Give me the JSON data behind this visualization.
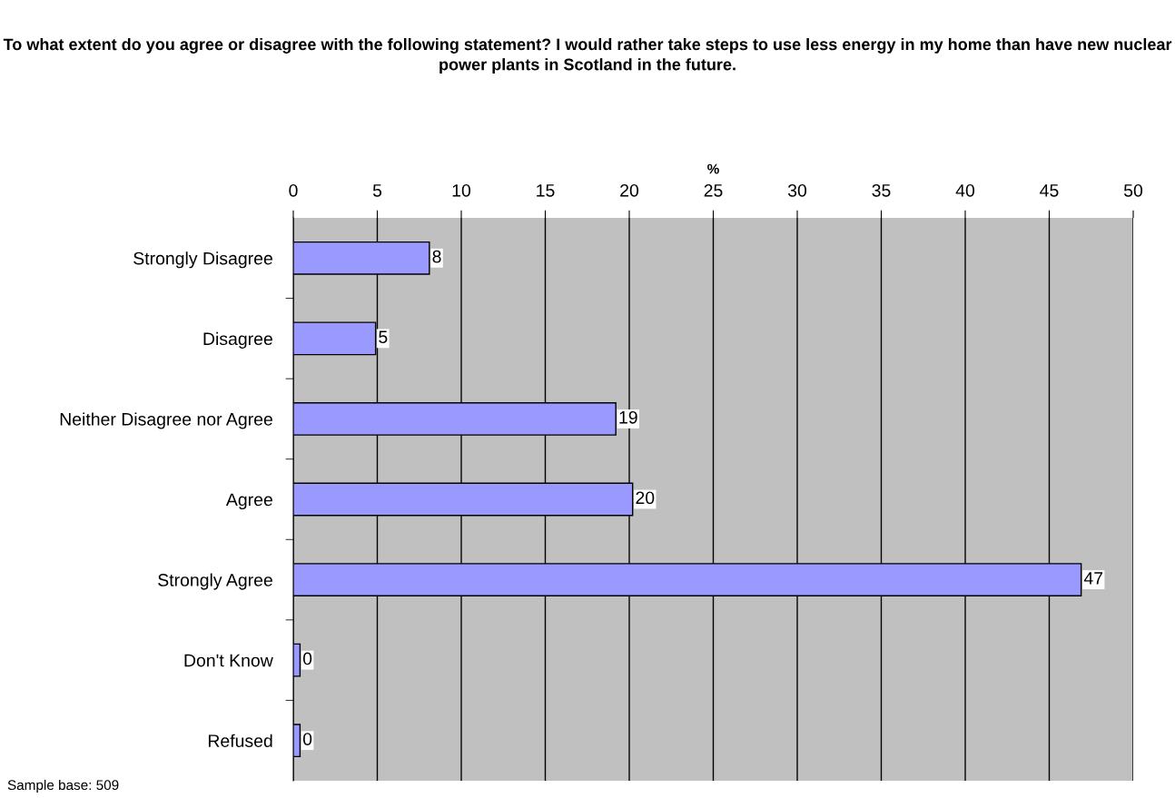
{
  "chart_data": {
    "type": "bar",
    "orientation": "horizontal",
    "title": "To what extent do you agree or disagree with the following statement? I would rather take steps to use less energy in my home than have new nuclear power plants in Scotland in the future.",
    "xlabel": "%",
    "categories": [
      "Strongly Disagree",
      "Disagree",
      "Neither Disagree nor Agree",
      "Agree",
      "Strongly Agree",
      "Don't Know",
      "Refused"
    ],
    "values": [
      8.1,
      4.9,
      19.2,
      20.2,
      46.9,
      0.4,
      0.4
    ],
    "value_labels": [
      "8",
      "5",
      "19",
      "20",
      "47",
      "0",
      "0"
    ],
    "color": "#9999ff",
    "xlim": [
      0,
      50
    ],
    "xticks": [
      0,
      5,
      10,
      15,
      20,
      25,
      30,
      35,
      40,
      45,
      50
    ],
    "grid": "x",
    "annotations": [
      "Sample base: 509"
    ]
  }
}
